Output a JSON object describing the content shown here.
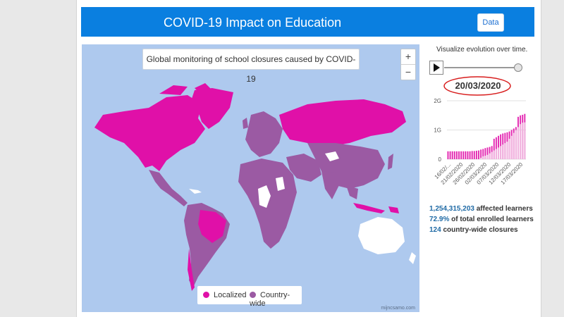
{
  "header": {
    "title": "COVID-19 Impact on Education",
    "data_button": "Data"
  },
  "map": {
    "title": "Global monitoring of school closures caused by COVID-19",
    "zoom_in": "+",
    "zoom_out": "−",
    "credit": "mijncsamo.com",
    "legend": [
      {
        "label": "Localized",
        "color": "#e010a8"
      },
      {
        "label": "Country-wide",
        "color": "#9b5aa3"
      }
    ]
  },
  "sidebar": {
    "caption": "Visualize evolution over time.",
    "date": "20/03/2020",
    "slider_position": 1.0,
    "stats": [
      {
        "value": "1,254,315,203",
        "text": " affected learners"
      },
      {
        "value": "72.9%",
        "text": " of total enrolled learners"
      },
      {
        "value": "124",
        "text": " country-wide closures"
      }
    ]
  },
  "chart_data": {
    "type": "bar",
    "y_tick_labels": [
      "2G",
      "1G",
      "0"
    ],
    "ylim": [
      0,
      2
    ],
    "x_tick_labels": [
      "16/02/...",
      "21/02/2020",
      "26/02/2020",
      "02/03/2020",
      "07/03/2020",
      "12/03/2020",
      "17/03/2020"
    ],
    "series": [
      {
        "values_localized": [
          0.27,
          0.27,
          0.27,
          0.27,
          0.27,
          0.27,
          0.27,
          0.27,
          0.27,
          0.27,
          0.27,
          0.28,
          0.28,
          0.29,
          0.3,
          0.33,
          0.35,
          0.38,
          0.4,
          0.42,
          0.45,
          0.7,
          0.75,
          0.8,
          0.85,
          0.88,
          0.9,
          0.92,
          0.95,
          1.0,
          1.05,
          1.1,
          1.45,
          1.5,
          1.52,
          1.55
        ],
        "values_countrywide": [
          0.0,
          0.0,
          0.0,
          0.0,
          0.0,
          0.0,
          0.0,
          0.0,
          0.0,
          0.0,
          0.0,
          0.0,
          0.0,
          0.0,
          0.0,
          0.05,
          0.1,
          0.12,
          0.15,
          0.2,
          0.25,
          0.3,
          0.35,
          0.4,
          0.45,
          0.5,
          0.55,
          0.6,
          0.7,
          0.8,
          0.9,
          1.0,
          1.1,
          1.2,
          1.25,
          1.26
        ]
      }
    ]
  },
  "colors": {
    "header": "#0a7fe0",
    "ocean": "#aec9ee",
    "localized": "#e010a8",
    "countrywide": "#9b5aa3",
    "open": "#ffffff",
    "stat_number": "#1f6aa5",
    "ellipse": "#d81e1e"
  }
}
